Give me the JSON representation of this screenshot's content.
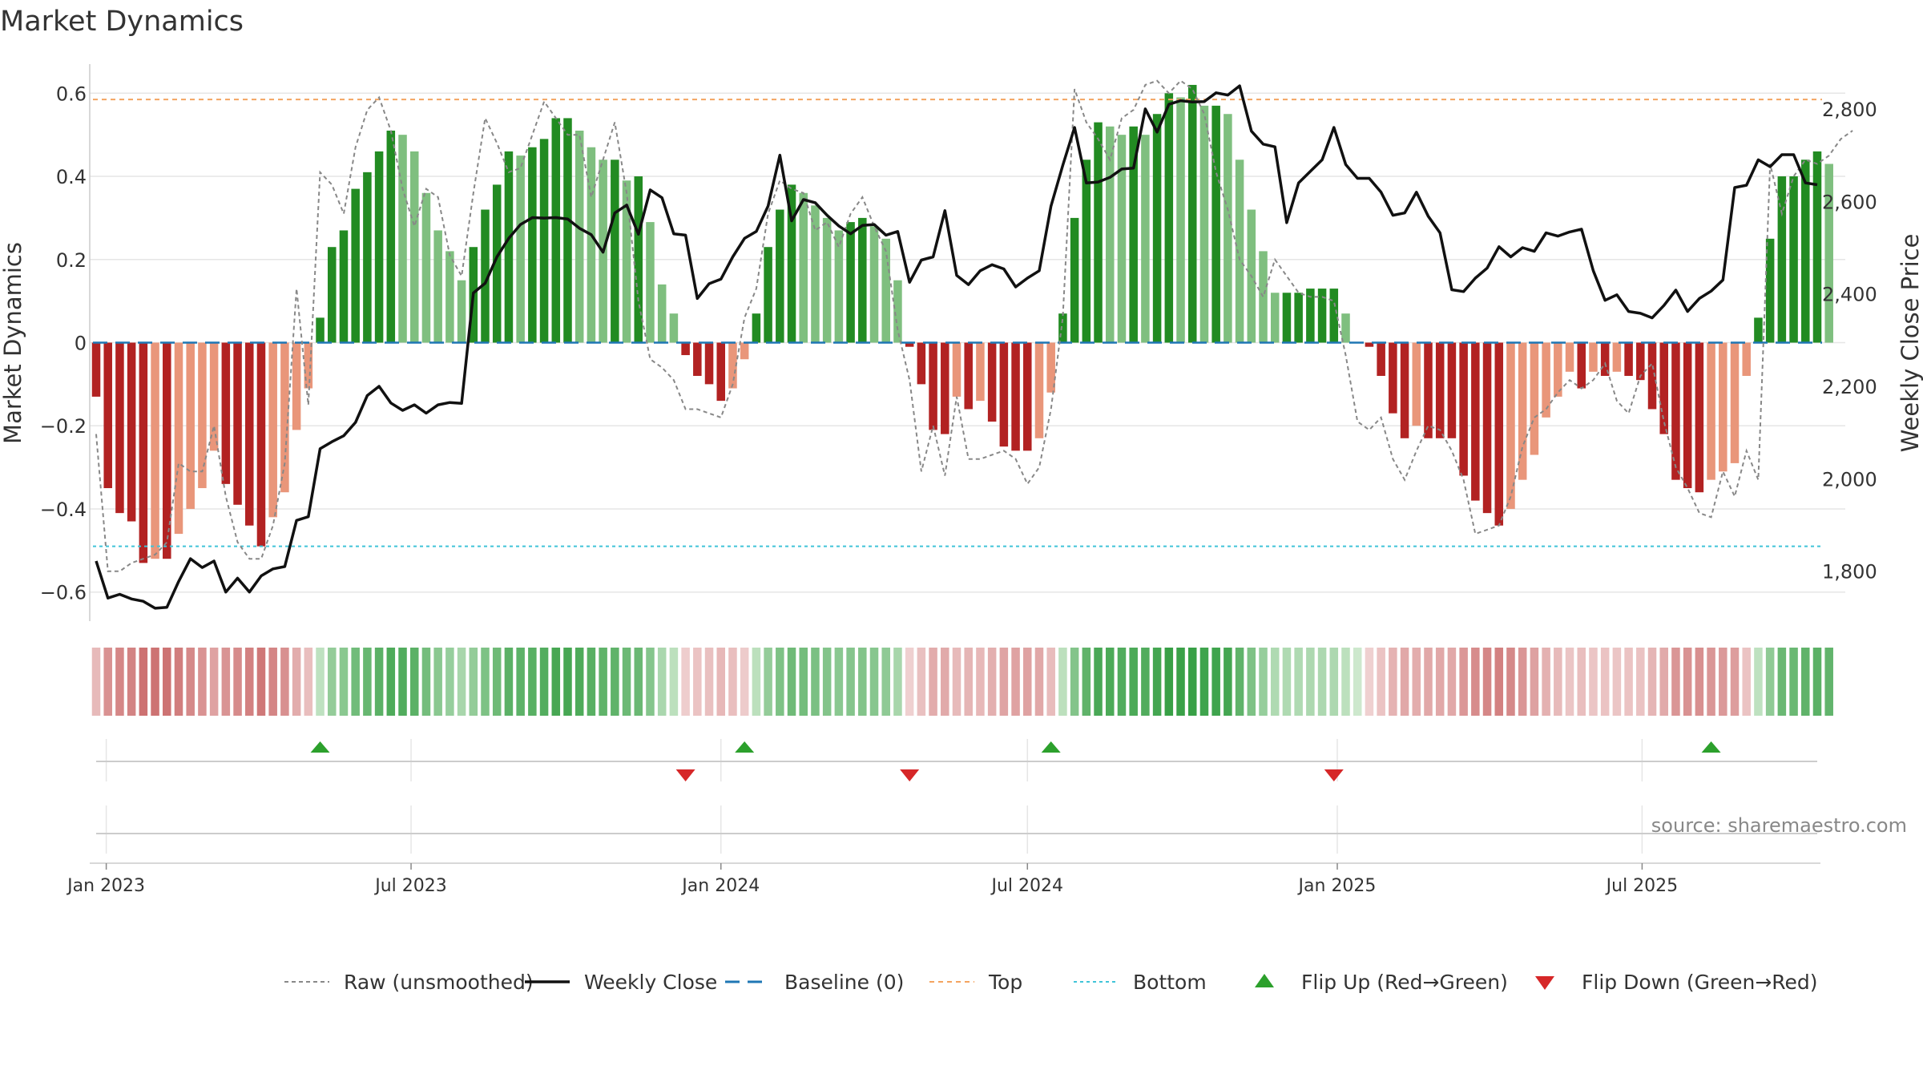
{
  "title": "Market Dynamics",
  "source_note": "source: sharemaestro.com",
  "legend": [
    {
      "key": "raw",
      "label": "Raw (unsmoothed)"
    },
    {
      "key": "close",
      "label": "Weekly Close"
    },
    {
      "key": "baseline",
      "label": "Baseline (0)"
    },
    {
      "key": "top",
      "label": "Top"
    },
    {
      "key": "bottom",
      "label": "Bottom"
    },
    {
      "key": "flip_up",
      "label": "Flip Up (Red→Green)"
    },
    {
      "key": "flip_down",
      "label": "Flip Down (Green→Red)"
    }
  ],
  "colors": {
    "green_dark": "#228b22",
    "green_light": "#7fbf7f",
    "red_dark": "#b22222",
    "red_light": "#e9967a",
    "close_line": "#111111",
    "raw_line": "#888888",
    "baseline": "#1f77b4",
    "top_line": "#f4a460",
    "bottom_line": "#40c4d8",
    "flip_up": "#2ca02c",
    "flip_down": "#d62728",
    "grid": "#e6e6e6"
  },
  "chart_data": {
    "type": "bar+line",
    "xlabel": "",
    "ylabel_left": "Market Dynamics",
    "ylabel_right": "Weekly Close Price",
    "ylim_left": [
      -0.67,
      0.67
    ],
    "ylim_right": [
      1692,
      2897
    ],
    "yticks_left": [
      -0.6,
      -0.4,
      -0.2,
      0,
      0.2,
      0.4,
      0.6
    ],
    "ytick_labels_left": [
      "−0.6",
      "−0.4",
      "−0.2",
      "0",
      "0.2",
      "0.4",
      "0.6"
    ],
    "yticks_right": [
      1800,
      2000,
      2200,
      2400,
      2600,
      2800
    ],
    "ytick_labels_right": [
      "1,800",
      "2,000",
      "2,200",
      "2,400",
      "2,600",
      "2,800"
    ],
    "x_start": "2022-12-26",
    "x_end": "2025-10-13",
    "xtick_dates": [
      "2023-01-01",
      "2023-07-01",
      "2024-01-01",
      "2024-07-01",
      "2025-01-01",
      "2025-07-01"
    ],
    "xtick_labels": [
      "Jan 2023",
      "Jul 2023",
      "Jan 2024",
      "Jul 2024",
      "Jan 2025",
      "Jul 2025"
    ],
    "top_level": 0.585,
    "bottom_level": -0.49,
    "baseline_level": 0,
    "grid": true,
    "legend_position": "bottom-center",
    "series": [
      {
        "name": "Market Dynamics",
        "type": "bar",
        "values": [
          -0.13,
          -0.35,
          -0.41,
          -0.43,
          -0.53,
          -0.52,
          -0.52,
          -0.46,
          -0.4,
          -0.35,
          -0.26,
          -0.34,
          -0.39,
          -0.44,
          -0.49,
          -0.42,
          -0.36,
          -0.21,
          -0.11,
          0.06,
          0.23,
          0.27,
          0.37,
          0.41,
          0.46,
          0.51,
          0.5,
          0.46,
          0.36,
          0.27,
          0.22,
          0.15,
          0.23,
          0.32,
          0.38,
          0.46,
          0.45,
          0.47,
          0.49,
          0.54,
          0.54,
          0.51,
          0.47,
          0.44,
          0.44,
          0.39,
          0.4,
          0.29,
          0.14,
          0.07,
          -0.03,
          -0.08,
          -0.1,
          -0.14,
          -0.11,
          -0.04,
          0.07,
          0.23,
          0.32,
          0.38,
          0.36,
          0.33,
          0.3,
          0.27,
          0.29,
          0.3,
          0.28,
          0.25,
          0.15,
          -0.01,
          -0.1,
          -0.21,
          -0.22,
          -0.13,
          -0.16,
          -0.14,
          -0.19,
          -0.25,
          -0.26,
          -0.26,
          -0.23,
          -0.12,
          0.07,
          0.3,
          0.44,
          0.53,
          0.52,
          0.5,
          0.52,
          0.5,
          0.55,
          0.6,
          0.59,
          0.62,
          0.57,
          0.57,
          0.55,
          0.44,
          0.32,
          0.22,
          0.12,
          0.12,
          0.12,
          0.13,
          0.13,
          0.13,
          0.07,
          0,
          -0.01,
          -0.08,
          -0.17,
          -0.23,
          -0.2,
          -0.23,
          -0.23,
          -0.23,
          -0.32,
          -0.38,
          -0.41,
          -0.44,
          -0.4,
          -0.33,
          -0.27,
          -0.18,
          -0.13,
          -0.07,
          -0.11,
          -0.07,
          -0.08,
          -0.07,
          -0.08,
          -0.09,
          -0.16,
          -0.22,
          -0.33,
          -0.35,
          -0.36,
          -0.33,
          -0.31,
          -0.29,
          -0.08,
          0.06,
          0.25,
          0.4,
          0.4,
          0.44,
          0.46,
          0.43
        ]
      },
      {
        "name": "Raw (unsmoothed)",
        "type": "line",
        "values": [
          -0.22,
          -0.55,
          -0.55,
          -0.53,
          -0.52,
          -0.51,
          -0.48,
          -0.29,
          -0.31,
          -0.31,
          -0.2,
          -0.37,
          -0.48,
          -0.52,
          -0.52,
          -0.44,
          -0.29,
          0.13,
          -0.15,
          0.41,
          0.38,
          0.31,
          0.47,
          0.56,
          0.59,
          0.51,
          0.37,
          0.28,
          0.37,
          0.35,
          0.21,
          0.16,
          0.36,
          0.54,
          0.48,
          0.41,
          0.42,
          0.5,
          0.58,
          0.54,
          0.5,
          0.5,
          0.35,
          0.44,
          0.53,
          0.36,
          0.1,
          -0.04,
          -0.06,
          -0.09,
          -0.16,
          -0.16,
          -0.17,
          -0.18,
          -0.1,
          0.06,
          0.13,
          0.31,
          0.39,
          0.37,
          0.36,
          0.27,
          0.29,
          0.23,
          0.31,
          0.35,
          0.28,
          0.22,
          0.03,
          -0.09,
          -0.31,
          -0.2,
          -0.32,
          -0.13,
          -0.28,
          -0.28,
          -0.27,
          -0.26,
          -0.28,
          -0.34,
          -0.3,
          -0.16,
          0.06,
          0.61,
          0.53,
          0.49,
          0.44,
          0.54,
          0.56,
          0.62,
          0.63,
          0.6,
          0.63,
          0.61,
          0.55,
          0.41,
          0.32,
          0.2,
          0.16,
          0.11,
          0.2,
          0.16,
          0.12,
          0.11,
          0.11,
          0.1,
          -0.03,
          -0.19,
          -0.21,
          -0.18,
          -0.28,
          -0.33,
          -0.26,
          -0.2,
          -0.21,
          -0.26,
          -0.33,
          -0.46,
          -0.45,
          -0.44,
          -0.37,
          -0.25,
          -0.18,
          -0.16,
          -0.12,
          -0.09,
          -0.11,
          -0.09,
          -0.05,
          -0.14,
          -0.17,
          -0.08,
          -0.05,
          -0.19,
          -0.3,
          -0.35,
          -0.41,
          -0.42,
          -0.31,
          -0.37,
          -0.26,
          -0.33,
          0.43,
          0.31,
          0.4,
          0.44,
          0.43,
          0.45,
          0.49,
          0.51
        ]
      },
      {
        "name": "Weekly Close",
        "type": "line",
        "axis": "right",
        "values": [
          1822,
          1742,
          1750,
          1740,
          1735,
          1720,
          1722,
          1778,
          1827,
          1808,
          1822,
          1755,
          1785,
          1755,
          1790,
          1805,
          1810,
          1910,
          1918,
          2065,
          2080,
          2093,
          2122,
          2180,
          2200,
          2164,
          2148,
          2160,
          2142,
          2160,
          2165,
          2163,
          2402,
          2423,
          2480,
          2520,
          2550,
          2565,
          2564,
          2565,
          2562,
          2542,
          2528,
          2490,
          2575,
          2592,
          2529,
          2625,
          2608,
          2530,
          2527,
          2390,
          2422,
          2432,
          2480,
          2520,
          2535,
          2590,
          2700,
          2558,
          2604,
          2597,
          2570,
          2547,
          2530,
          2548,
          2550,
          2527,
          2535,
          2425,
          2473,
          2480,
          2580,
          2440,
          2420,
          2450,
          2463,
          2454,
          2415,
          2434,
          2450,
          2590,
          2678,
          2760,
          2640,
          2642,
          2652,
          2670,
          2672,
          2800,
          2750,
          2810,
          2818,
          2815,
          2816,
          2835,
          2830,
          2850,
          2752,
          2724,
          2718,
          2554,
          2640,
          2665,
          2690,
          2760,
          2680,
          2650,
          2650,
          2620,
          2570,
          2575,
          2620,
          2568,
          2532,
          2409,
          2405,
          2434,
          2456,
          2502,
          2480,
          2500,
          2492,
          2532,
          2525,
          2534,
          2540,
          2450,
          2386,
          2398,
          2362,
          2358,
          2348,
          2375,
          2408,
          2362,
          2390,
          2406,
          2430,
          2630,
          2635,
          2690,
          2675,
          2701,
          2701,
          2640,
          2636
        ]
      }
    ],
    "regime_strip": {
      "label": "",
      "meaning": "bar color per week: green = positive, red = negative; intensity follows magnitude"
    },
    "flip_up_dates": [
      "2023-05-08",
      "2024-01-15",
      "2024-07-15",
      "2025-08-11"
    ],
    "flip_down_dates": [
      "2023-12-11",
      "2024-04-22",
      "2024-12-30"
    ]
  }
}
